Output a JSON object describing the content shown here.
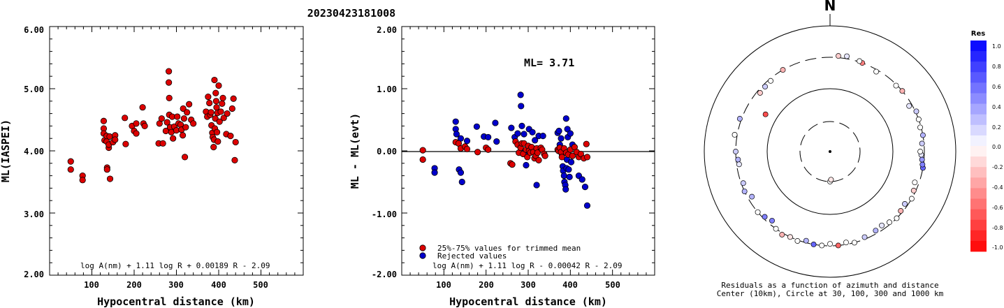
{
  "header": {
    "title": "20230423181008"
  },
  "panel1": {
    "ylabel": "ML(IASPEI)",
    "xlabel": "Hypocentral distance (km)",
    "formula": "log A(nm) + 1.11 log R + 0.00189 R - 2.09",
    "yticks": [
      "6.00",
      "5.00",
      "4.00",
      "3.00",
      "2.00"
    ],
    "xticks": [
      "100",
      "200",
      "300",
      "400",
      "500"
    ]
  },
  "panel2": {
    "ylabel": "ML - ML(evt)",
    "xlabel": "Hypocentral distance (km)",
    "formula": "log A(nm) + 1.11 log R - 0.00042 R - 2.09",
    "ml_label": "ML= 3.71",
    "legend_trimmed": "25%-75% values for trimmed mean",
    "legend_rejected": "Rejected values",
    "yticks": [
      "2.00",
      "1.00",
      "0.00",
      "-1.00",
      "-2.00"
    ],
    "xticks": [
      "100",
      "200",
      "300",
      "400",
      "500"
    ]
  },
  "panel3": {
    "north": "N",
    "caption_line1": "Residuals as a function of azimuth and distance",
    "caption_line2": "Center (10km), Circle at 30, 100, 300 and 1000 km",
    "colorbar_title": "Res",
    "colorbar_labels": [
      "1.0",
      "0.8",
      "0.6",
      "0.4",
      "0.2",
      "0.0",
      "-0.2",
      "-0.4",
      "-0.6",
      "-0.8",
      "-1.0"
    ]
  },
  "colors": {
    "trimmed": "#dd0000",
    "rejected": "#0000cc",
    "axis": "#000000"
  },
  "chart_data": [
    {
      "type": "scatter",
      "title": "20230423181008",
      "xlabel": "Hypocentral distance (km)",
      "ylabel": "ML(IASPEI)",
      "xlim": [
        0,
        600
      ],
      "ylim": [
        2.0,
        6.0
      ],
      "series": [
        {
          "points": [
            [
              50,
              3.83
            ],
            [
              50,
              3.7
            ],
            [
              78,
              3.6
            ],
            [
              78,
              3.53
            ],
            [
              128,
              4.48
            ],
            [
              128,
              4.36
            ],
            [
              128,
              4.28
            ],
            [
              130,
              4.17
            ],
            [
              135,
              4.15
            ],
            [
              135,
              4.24
            ],
            [
              136,
              3.73
            ],
            [
              136,
              3.7
            ],
            [
              140,
              4.05
            ],
            [
              140,
              4.1
            ],
            [
              142,
              4.23
            ],
            [
              143,
              3.55
            ],
            [
              150,
              4.14
            ],
            [
              155,
              4.25
            ],
            [
              155,
              4.18
            ],
            [
              178,
              4.53
            ],
            [
              180,
              4.11
            ],
            [
              195,
              4.4
            ],
            [
              200,
              4.32
            ],
            [
              205,
              4.44
            ],
            [
              205,
              4.28
            ],
            [
              220,
              4.7
            ],
            [
              222,
              4.44
            ],
            [
              225,
              4.4
            ],
            [
              258,
              4.12
            ],
            [
              260,
              4.44
            ],
            [
              265,
              4.52
            ],
            [
              268,
              4.12
            ],
            [
              275,
              4.32
            ],
            [
              278,
              4.46
            ],
            [
              282,
              5.28
            ],
            [
              282,
              5.1
            ],
            [
              283,
              4.85
            ],
            [
              283,
              4.58
            ],
            [
              285,
              4.38
            ],
            [
              288,
              4.3
            ],
            [
              290,
              4.55
            ],
            [
              292,
              4.2
            ],
            [
              295,
              4.39
            ],
            [
              300,
              4.33
            ],
            [
              302,
              4.55
            ],
            [
              305,
              4.44
            ],
            [
              310,
              4.42
            ],
            [
              312,
              4.34
            ],
            [
              315,
              4.25
            ],
            [
              316,
              4.68
            ],
            [
              318,
              4.52
            ],
            [
              320,
              3.9
            ],
            [
              322,
              4.38
            ],
            [
              325,
              4.62
            ],
            [
              330,
              4.75
            ],
            [
              335,
              4.5
            ],
            [
              340,
              4.44
            ],
            [
              370,
              4.63
            ],
            [
              373,
              4.55
            ],
            [
              375,
              4.87
            ],
            [
              378,
              4.77
            ],
            [
              380,
              4.58
            ],
            [
              382,
              4.62
            ],
            [
              383,
              4.41
            ],
            [
              385,
              4.29
            ],
            [
              386,
              4.22
            ],
            [
              388,
              4.06
            ],
            [
              389,
              4.18
            ],
            [
              390,
              5.14
            ],
            [
              391,
              4.36
            ],
            [
              392,
              4.52
            ],
            [
              393,
              4.93
            ],
            [
              394,
              4.8
            ],
            [
              395,
              4.7
            ],
            [
              396,
              4.3
            ],
            [
              397,
              4.61
            ],
            [
              398,
              4.15
            ],
            [
              400,
              5.05
            ],
            [
              402,
              4.47
            ],
            [
              405,
              4.63
            ],
            [
              408,
              4.76
            ],
            [
              410,
              4.85
            ],
            [
              412,
              4.53
            ],
            [
              418,
              4.27
            ],
            [
              420,
              4.6
            ],
            [
              428,
              4.24
            ],
            [
              432,
              4.68
            ],
            [
              435,
              4.84
            ],
            [
              438,
              3.85
            ],
            [
              440,
              4.14
            ]
          ]
        }
      ]
    },
    {
      "type": "scatter",
      "xlabel": "Hypocentral distance (km)",
      "ylabel": "ML - ML(evt)",
      "xlim": [
        0,
        600
      ],
      "ylim": [
        -2.0,
        2.0
      ],
      "annotation": "ML= 3.71",
      "formula": "log A(nm) + 1.11 log R - 0.00042 R - 2.09",
      "series": [
        {
          "name": "25%-75% values for trimmed mean",
          "points": [
            [
              50,
              0.01
            ],
            [
              50,
              -0.14
            ],
            [
              128,
              0.14
            ],
            [
              135,
              0.12
            ],
            [
              140,
              0.04
            ],
            [
              150,
              0.07
            ],
            [
              155,
              0.03
            ],
            [
              180,
              -0.02
            ],
            [
              200,
              0.05
            ],
            [
              205,
              0.02
            ],
            [
              258,
              -0.2
            ],
            [
              262,
              -0.22
            ],
            [
              270,
              0.15
            ],
            [
              275,
              0.1
            ],
            [
              278,
              -0.03
            ],
            [
              282,
              0.05
            ],
            [
              285,
              0.12
            ],
            [
              288,
              -0.05
            ],
            [
              290,
              0.12
            ],
            [
              295,
              0.02
            ],
            [
              298,
              -0.1
            ],
            [
              300,
              0.08
            ],
            [
              302,
              0.0
            ],
            [
              305,
              -0.03
            ],
            [
              308,
              0.06
            ],
            [
              312,
              -0.02
            ],
            [
              315,
              -0.12
            ],
            [
              318,
              -0.08
            ],
            [
              320,
              0.04
            ],
            [
              322,
              -0.03
            ],
            [
              325,
              -0.15
            ],
            [
              330,
              0.05
            ],
            [
              333,
              0.02
            ],
            [
              338,
              -0.05
            ],
            [
              340,
              -0.08
            ],
            [
              370,
              0.02
            ],
            [
              372,
              0.0
            ],
            [
              375,
              0.05
            ],
            [
              378,
              -0.02
            ],
            [
              380,
              -0.1
            ],
            [
              385,
              0.04
            ],
            [
              390,
              -0.03
            ],
            [
              395,
              -0.06
            ],
            [
              400,
              0.02
            ],
            [
              405,
              -0.08
            ],
            [
              410,
              0.06
            ],
            [
              415,
              -0.02
            ],
            [
              420,
              -0.1
            ],
            [
              425,
              -0.05
            ],
            [
              432,
              -0.12
            ],
            [
              438,
              0.11
            ],
            [
              440,
              -0.1
            ]
          ]
        },
        {
          "name": "Rejected values",
          "points": [
            [
              78,
              -0.28
            ],
            [
              78,
              -0.35
            ],
            [
              128,
              0.47
            ],
            [
              128,
              0.35
            ],
            [
              130,
              0.27
            ],
            [
              135,
              0.12
            ],
            [
              136,
              -0.3
            ],
            [
              140,
              -0.35
            ],
            [
              140,
              0.2
            ],
            [
              143,
              -0.5
            ],
            [
              155,
              0.16
            ],
            [
              178,
              0.39
            ],
            [
              195,
              0.23
            ],
            [
              205,
              0.22
            ],
            [
              222,
              0.45
            ],
            [
              225,
              0.15
            ],
            [
              260,
              0.37
            ],
            [
              268,
              0.22
            ],
            [
              275,
              0.28
            ],
            [
              282,
              0.9
            ],
            [
              283,
              0.72
            ],
            [
              285,
              0.4
            ],
            [
              290,
              0.27
            ],
            [
              292,
              -0.02
            ],
            [
              295,
              -0.23
            ],
            [
              302,
              0.35
            ],
            [
              310,
              0.3
            ],
            [
              316,
              0.17
            ],
            [
              320,
              -0.55
            ],
            [
              325,
              0.24
            ],
            [
              335,
              0.24
            ],
            [
              370,
              0.29
            ],
            [
              373,
              0.32
            ],
            [
              375,
              0.1
            ],
            [
              378,
              0.2
            ],
            [
              380,
              -0.05
            ],
            [
              382,
              -0.25
            ],
            [
              383,
              -0.32
            ],
            [
              385,
              -0.4
            ],
            [
              386,
              -0.5
            ],
            [
              388,
              -0.55
            ],
            [
              389,
              -0.62
            ],
            [
              390,
              0.52
            ],
            [
              391,
              -0.28
            ],
            [
              392,
              -0.14
            ],
            [
              393,
              0.35
            ],
            [
              394,
              0.22
            ],
            [
              396,
              -0.3
            ],
            [
              398,
              -0.42
            ],
            [
              400,
              0.28
            ],
            [
              402,
              -0.18
            ],
            [
              405,
              0.1
            ],
            [
              420,
              -0.4
            ],
            [
              428,
              -0.46
            ],
            [
              435,
              -0.58
            ],
            [
              440,
              -0.88
            ]
          ]
        }
      ]
    },
    {
      "type": "scatter",
      "title": "Residuals as a function of azimuth and distance",
      "subtitle": "Center (10km), Circle at 30, 100, 300 and 1000 km",
      "rings_km": [
        30,
        100,
        300,
        1000
      ],
      "colorbar_range": [
        -1.0,
        1.0
      ],
      "points_az_dist_res": [
        [
          330,
          300,
          -0.3
        ],
        [
          320,
          280,
          0.0
        ],
        [
          315,
          275,
          0.2
        ],
        [
          310,
          270,
          -0.2
        ],
        [
          300,
          150,
          -0.7
        ],
        [
          290,
          320,
          0.3
        ],
        [
          280,
          330,
          0.0
        ],
        [
          270,
          300,
          0.2
        ],
        [
          265,
          280,
          0.3
        ],
        [
          262,
          275,
          0.1
        ],
        [
          250,
          280,
          0.2
        ],
        [
          245,
          300,
          0.3
        ],
        [
          240,
          260,
          0.3
        ],
        [
          230,
          300,
          0.0
        ],
        [
          225,
          280,
          0.5
        ],
        [
          220,
          260,
          0.5
        ],
        [
          215,
          300,
          0.0
        ],
        [
          210,
          320,
          -0.3
        ],
        [
          205,
          300,
          -0.1
        ],
        [
          200,
          310,
          0.0
        ],
        [
          195,
          280,
          0.3
        ],
        [
          190,
          300,
          0.6
        ],
        [
          185,
          300,
          0.0
        ],
        [
          180,
          280,
          0.0
        ],
        [
          175,
          300,
          -0.6
        ],
        [
          170,
          280,
          0.0
        ],
        [
          165,
          300,
          0.0
        ],
        [
          158,
          280,
          0.2
        ],
        [
          150,
          270,
          0.3
        ],
        [
          145,
          260,
          0.1
        ],
        [
          140,
          280,
          0.0
        ],
        [
          135,
          300,
          0.0
        ],
        [
          130,
          280,
          -0.3
        ],
        [
          125,
          270,
          0.2
        ],
        [
          120,
          300,
          0.0
        ],
        [
          115,
          280,
          -0.2
        ],
        [
          110,
          260,
          0.0
        ],
        [
          100,
          300,
          0.6
        ],
        [
          98,
          290,
          0.5
        ],
        [
          95,
          280,
          0.4
        ],
        [
          92,
          270,
          0.1
        ],
        [
          90,
          260,
          0.0
        ],
        [
          85,
          280,
          0.2
        ],
        [
          80,
          300,
          0.3
        ],
        [
          75,
          290,
          0.0
        ],
        [
          70,
          300,
          0.0
        ],
        [
          65,
          310,
          0.2
        ],
        [
          60,
          270,
          0.1
        ],
        [
          50,
          300,
          -0.3
        ],
        [
          45,
          290,
          0.0
        ],
        [
          30,
          280,
          0.0
        ],
        [
          20,
          300,
          -0.5
        ],
        [
          18,
          310,
          0.0
        ],
        [
          10,
          330,
          0.1
        ],
        [
          5,
          320,
          -0.2
        ],
        [
          180,
          30,
          0.0
        ],
        [
          178,
          28,
          -0.1
        ]
      ]
    }
  ]
}
